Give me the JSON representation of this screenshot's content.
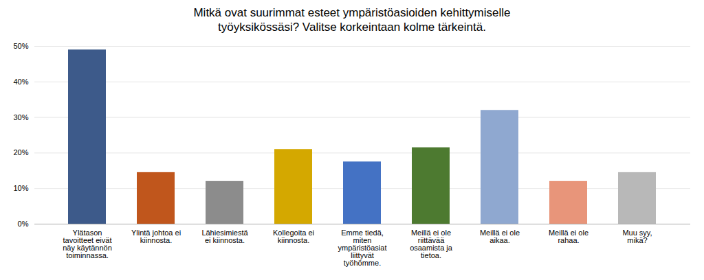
{
  "chart_data": {
    "type": "bar",
    "title": "Mitkä ovat suurimmat esteet ympäristöasioiden kehittymiselle\ntyöyksikössäsi? Valitse korkeintaan kolme tärkeintä.",
    "categories": [
      "Ylätason\ntavoitteet eivät\nnäy käytännön\ntoiminnassa.",
      "Ylintä johtoa ei\nkiinnosta.",
      "Lähiesimiestä\nei kiinnosta.",
      "Kollegoita ei\nkiinnosta.",
      "Emme tiedä,\nmiten\nympäristöasiat\nliittyvät\ntyöhömme.",
      "Meillä ei ole\nriittävää\nosaamista ja\ntietoa.",
      "Meillä ei ole\naikaa.",
      "Meillä ei ole\nrahaa.",
      "Muu syy,\nmikä?"
    ],
    "values": [
      49,
      14.5,
      12,
      21,
      17.5,
      21.5,
      32,
      12,
      14.5
    ],
    "colors": [
      "#3D5A8A",
      "#C0561C",
      "#8C8C8C",
      "#D4A800",
      "#4472C4",
      "#4D7A30",
      "#8FA8D0",
      "#E8957A",
      "#B8B8B8"
    ],
    "ylim": [
      0,
      50
    ],
    "yticks": [
      {
        "value": 0,
        "label": "0%"
      },
      {
        "value": 10,
        "label": "10%"
      },
      {
        "value": 20,
        "label": "20%"
      },
      {
        "value": 30,
        "label": "30%"
      },
      {
        "value": 40,
        "label": "40%"
      },
      {
        "value": 50,
        "label": "50%"
      }
    ],
    "grid": true
  }
}
